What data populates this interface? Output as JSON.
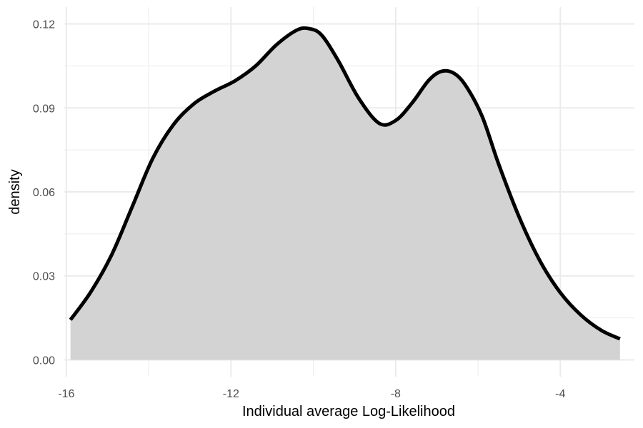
{
  "chart_data": {
    "type": "area",
    "title": "",
    "xlabel": "Individual average Log-Likelihood",
    "ylabel": "density",
    "xlim": [
      -16.05,
      -2.2
    ],
    "ylim": [
      -0.006,
      0.126
    ],
    "x_ticks": [
      -16,
      -12,
      -8,
      -4
    ],
    "x_tick_labels": [
      "-16",
      "-12",
      "-8",
      "-4"
    ],
    "y_ticks": [
      0.0,
      0.03,
      0.06,
      0.09,
      0.12
    ],
    "y_tick_labels": [
      "0.00",
      "0.03",
      "0.06",
      "0.09",
      "0.12"
    ],
    "grid": true,
    "legend": "none",
    "colors": {
      "fill": "#d3d3d3",
      "line": "#000000",
      "grid": "#ebebeb",
      "tick_text": "#4d4d4d"
    },
    "series": [
      {
        "x": [
          -15.9,
          -15.4,
          -14.9,
          -14.4,
          -13.9,
          -13.4,
          -12.9,
          -12.4,
          -11.9,
          -11.4,
          -10.9,
          -10.4,
          -10.1,
          -9.8,
          -9.4,
          -8.9,
          -8.4,
          -8.0,
          -7.6,
          -7.2,
          -6.9,
          -6.6,
          -6.3,
          -5.9,
          -5.5,
          -5.0,
          -4.5,
          -4.0,
          -3.5,
          -3.0,
          -2.55
        ],
        "y": [
          0.0143,
          0.0244,
          0.0375,
          0.0547,
          0.072,
          0.084,
          0.0915,
          0.096,
          0.0997,
          0.105,
          0.1125,
          0.1178,
          0.1183,
          0.116,
          0.107,
          0.0935,
          0.0845,
          0.0855,
          0.0918,
          0.0998,
          0.103,
          0.1025,
          0.098,
          0.087,
          0.07,
          0.051,
          0.0355,
          0.024,
          0.016,
          0.0105,
          0.0075
        ]
      }
    ]
  }
}
